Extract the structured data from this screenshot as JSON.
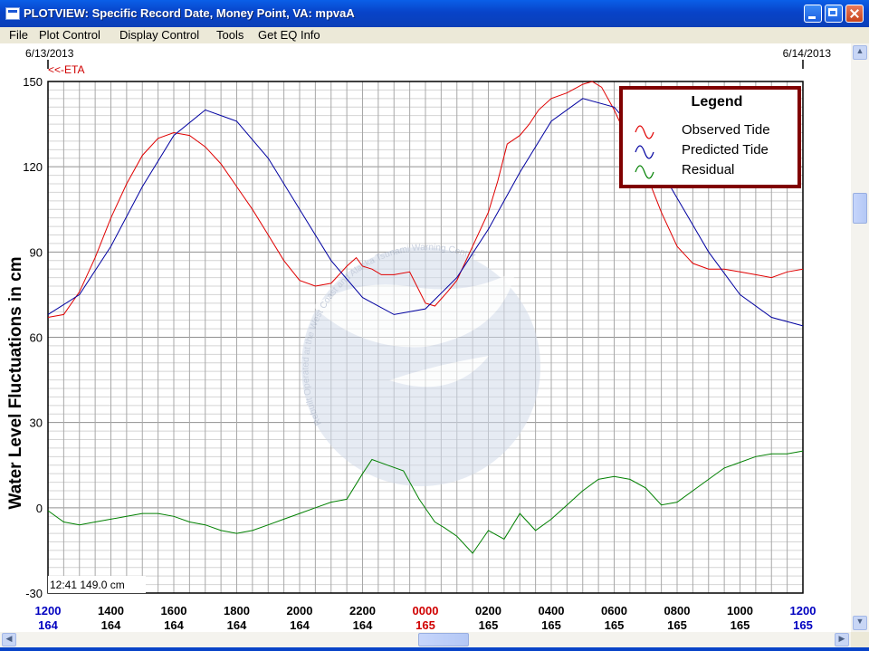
{
  "window": {
    "title": "PLOTVIEW: Specific Record Date, Money Point, VA: mpvaA"
  },
  "menu": {
    "items": [
      "File",
      "Plot Control",
      "Display Control",
      "Tools",
      "Get EQ Info"
    ]
  },
  "plot": {
    "date_left": "6/13/2013",
    "date_right": "6/14/2013",
    "eta_label": "<<-ETA",
    "cursor_readout": "12:41 149.0 cm",
    "watermark_text": "Rebuilt Operated at the West Coast and Alaska Tsunami Warning Center",
    "legend": {
      "title": "Legend",
      "entries": [
        "Observed Tide",
        "Predicted Tide",
        "Residual"
      ]
    },
    "colors": {
      "observed": "#e00000",
      "predicted": "#0000a0",
      "residual": "#008000",
      "grid": "#a0a0a0",
      "legend_border": "#800000",
      "watermark": "#c8d2e4"
    }
  },
  "chart_data": {
    "type": "line",
    "ylabel": "Water Level Fluctuations in cm",
    "ylim": [
      -30,
      150
    ],
    "yticks": [
      "150",
      "120",
      "90",
      "60",
      "30",
      "0",
      "-30"
    ],
    "xlim": [
      0,
      24
    ],
    "xticks": [
      {
        "time": "1200",
        "day": "164"
      },
      {
        "time": "1400",
        "day": "164"
      },
      {
        "time": "1600",
        "day": "164"
      },
      {
        "time": "1800",
        "day": "164"
      },
      {
        "time": "2000",
        "day": "164"
      },
      {
        "time": "2200",
        "day": "164"
      },
      {
        "time": "0000",
        "day": "165"
      },
      {
        "time": "0200",
        "day": "165"
      },
      {
        "time": "0400",
        "day": "165"
      },
      {
        "time": "0600",
        "day": "165"
      },
      {
        "time": "0800",
        "day": "165"
      },
      {
        "time": "1000",
        "day": "165"
      },
      {
        "time": "1200",
        "day": "165"
      }
    ],
    "grid": true,
    "legend_position": "top-right",
    "series": [
      {
        "name": "Observed Tide",
        "x": [
          0,
          0.5,
          1,
          1.5,
          2,
          2.5,
          3,
          3.5,
          4,
          4.5,
          5,
          5.5,
          6,
          6.5,
          7,
          7.5,
          8,
          8.5,
          9,
          9.5,
          9.8,
          10,
          10.3,
          10.6,
          11,
          11.5,
          12,
          12.3,
          12.7,
          13,
          13.5,
          14,
          14.3,
          14.6,
          15,
          15.3,
          15.6,
          16,
          16.5,
          17,
          17.3,
          17.6,
          18,
          18.5,
          19,
          19.5,
          20,
          20.5,
          21,
          21.5,
          22,
          22.5,
          23,
          23.5,
          24
        ],
        "values": [
          67,
          68,
          76,
          88,
          102,
          114,
          124,
          130,
          132,
          131,
          127,
          121,
          113,
          105,
          96,
          87,
          80,
          78,
          79,
          85,
          88,
          85,
          84,
          82,
          82,
          83,
          72,
          71,
          76,
          80,
          92,
          104,
          115,
          128,
          131,
          135,
          140,
          144,
          146,
          149,
          150,
          148,
          140,
          128,
          118,
          104,
          92,
          86,
          84,
          84,
          83,
          82,
          81,
          83,
          84
        ]
      },
      {
        "name": "Predicted Tide",
        "x": [
          0,
          1,
          2,
          3,
          4,
          5,
          6,
          7,
          8,
          9,
          10,
          11,
          12,
          13,
          14,
          15,
          16,
          17,
          18,
          19,
          20,
          21,
          22,
          23,
          24
        ],
        "values": [
          68,
          75,
          92,
          113,
          131,
          140,
          136,
          123,
          105,
          87,
          74,
          68,
          70,
          81,
          98,
          118,
          136,
          144,
          141,
          128,
          109,
          90,
          75,
          67,
          64
        ]
      },
      {
        "name": "Residual",
        "x": [
          0,
          0.5,
          1,
          1.5,
          2,
          2.5,
          3,
          3.5,
          4,
          4.5,
          5,
          5.5,
          6,
          6.5,
          7,
          7.5,
          8,
          8.5,
          9,
          9.5,
          10,
          10.3,
          10.8,
          11.3,
          11.8,
          12.3,
          12.6,
          13,
          13.5,
          14,
          14.5,
          15,
          15.5,
          16,
          16.5,
          17,
          17.5,
          18,
          18.5,
          19,
          19.5,
          20,
          20.5,
          21,
          21.5,
          22,
          22.5,
          23,
          23.5,
          24
        ],
        "values": [
          -1,
          -5,
          -6,
          -5,
          -4,
          -3,
          -2,
          -2,
          -3,
          -5,
          -6,
          -8,
          -9,
          -8,
          -6,
          -4,
          -2,
          0,
          2,
          3,
          12,
          17,
          15,
          13,
          3,
          -5,
          -7,
          -10,
          -16,
          -8,
          -11,
          -2,
          -8,
          -4,
          1,
          6,
          10,
          11,
          10,
          7,
          1,
          2,
          6,
          10,
          14,
          16,
          18,
          19,
          19,
          20
        ]
      }
    ]
  }
}
